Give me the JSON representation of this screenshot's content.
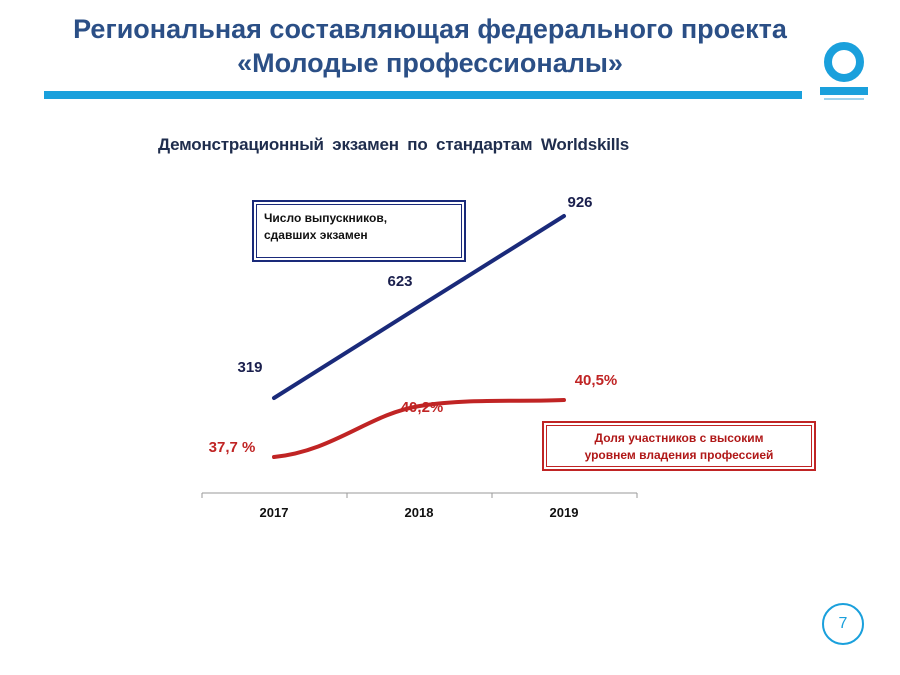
{
  "header": {
    "title_line1": "Региональная составляющая федерального проекта",
    "title_line2": "«Молодые профессионалы»"
  },
  "colors": {
    "title": "#2b4f86",
    "accent_bar": "#1aa0dc",
    "series_graduates": "#1a2a7a",
    "series_share": "#c02424"
  },
  "icons": [
    "education-project-logo-icon"
  ],
  "page_number": "7",
  "chart_data": {
    "type": "line",
    "title": "Демонстрационный экзамен по стандартам Worldskills",
    "categories": [
      "2017",
      "2018",
      "2019"
    ],
    "grid": false,
    "series": [
      {
        "name": "Число выпускников, сдавших экзамен",
        "name_lines": [
          "Число выпускников,",
          "сдавших экзамен"
        ],
        "values": [
          319,
          623,
          926
        ],
        "labels": [
          "319",
          "623",
          "926"
        ],
        "color": "#1a2a7a",
        "legend": "top-left"
      },
      {
        "name": "Доля участников с высоким уровнем владения профессией",
        "name_lines": [
          "Доля участников  с высоким",
          "уровнем владения профессией"
        ],
        "values": [
          37.7,
          40.2,
          40.5
        ],
        "labels": [
          "37,7 %",
          "40,2%",
          "40,5%"
        ],
        "color": "#c02424",
        "legend": "bottom-right"
      }
    ]
  }
}
